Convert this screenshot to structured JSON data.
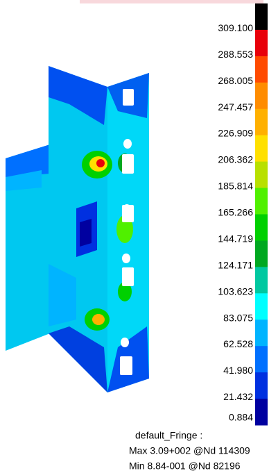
{
  "legend": {
    "labels": [
      "309.100",
      "288.553",
      "268.005",
      "247.457",
      "226.909",
      "206.362",
      "185.814",
      "165.266",
      "144.719",
      "124.171",
      "103.623",
      "83.075",
      "62.528",
      "41.980",
      "21.432",
      "0.884"
    ],
    "colors": [
      "#000000",
      "#e8000a",
      "#ff4a00",
      "#ff8c00",
      "#ffb000",
      "#ffe000",
      "#b8e000",
      "#50f000",
      "#00d000",
      "#00a820",
      "#00c8a0",
      "#00ffff",
      "#00b4ff",
      "#0070ff",
      "#0030e0",
      "#0000a0"
    ]
  },
  "info": {
    "title": "default_Fringe :",
    "max": "Max 3.09+002 @Nd 114309",
    "min": "Min 8.84-001 @Nd 82196"
  }
}
